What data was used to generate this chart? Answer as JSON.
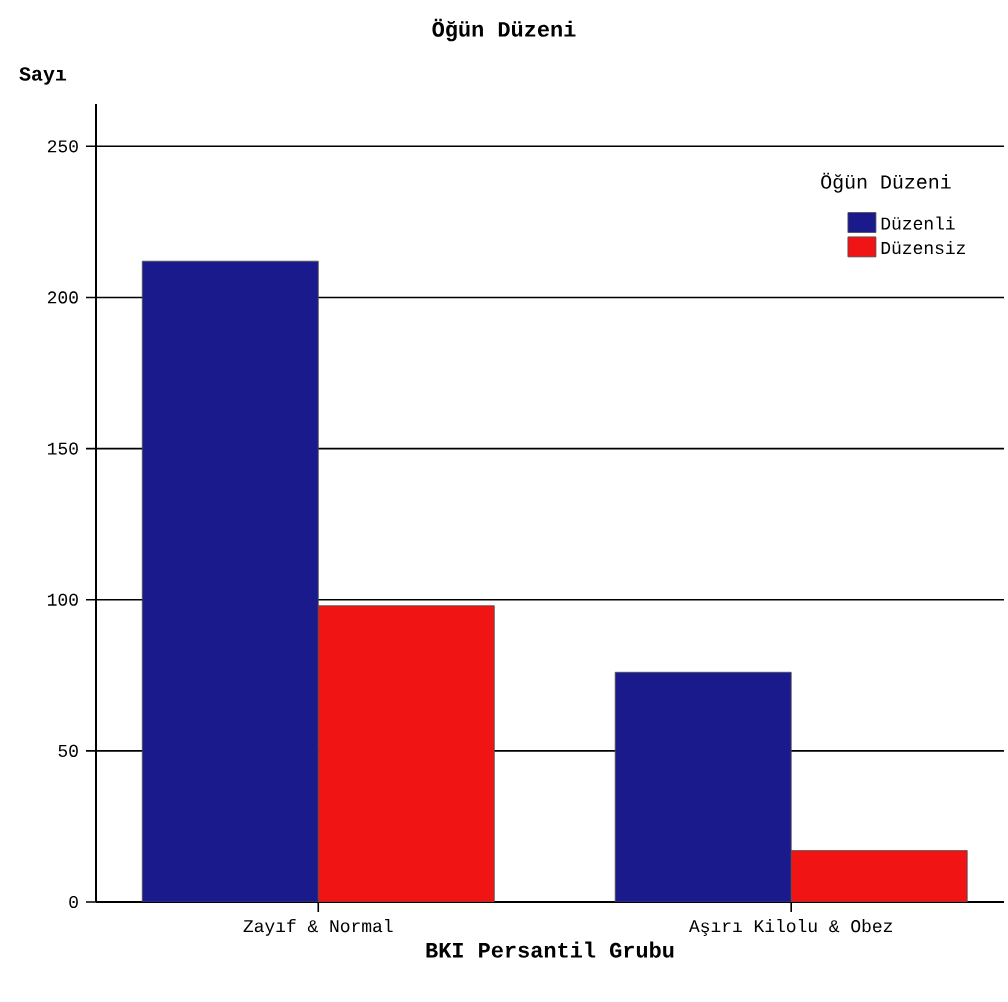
{
  "chart_data": {
    "type": "bar",
    "title": "Öğün Düzeni",
    "xlabel": "BKI Persantil Grubu",
    "ylabel": "Sayı",
    "legend_title": "Öğün Düzeni",
    "categories": [
      "Zayıf & Normal",
      "Aşırı Kilolu & Obez"
    ],
    "series": [
      {
        "name": "Düzenli",
        "color": "#1a1a8c",
        "values": [
          212,
          76
        ]
      },
      {
        "name": "Düzensiz",
        "color": "#f01414",
        "values": [
          98,
          17
        ]
      }
    ],
    "ylim": [
      0,
      264
    ],
    "yticks": [
      0,
      50,
      100,
      150,
      200,
      250
    ],
    "grid": "y",
    "legend": "top right"
  }
}
